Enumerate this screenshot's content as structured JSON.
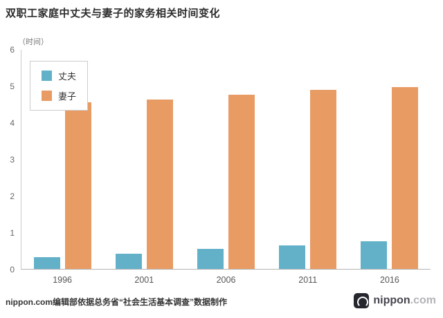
{
  "title": "双职工家庭中丈夫与妻子的家务相关时间变化",
  "unit_label": "（时间）",
  "colors": {
    "husband": "#63b1c9",
    "wife": "#e89b63"
  },
  "chart_data": {
    "type": "bar",
    "categories": [
      "1996",
      "2001",
      "2006",
      "2011",
      "2016"
    ],
    "series": [
      {
        "name": "丈夫",
        "color_key": "husband",
        "values": [
          0.33,
          0.42,
          0.55,
          0.65,
          0.75
        ]
      },
      {
        "name": "妻子",
        "color_key": "wife",
        "values": [
          4.55,
          4.62,
          4.75,
          4.88,
          4.97
        ]
      }
    ],
    "title": "双职工家庭中丈夫与妻子的家务相关时间变化",
    "xlabel": "",
    "ylabel": "（时间）",
    "ylim": [
      0,
      6
    ],
    "yticks": [
      0,
      1,
      2,
      3,
      4,
      5,
      6
    ],
    "grid": false,
    "legend_position": "top-left"
  },
  "footer": {
    "credit": "nippon.com编辑部依据总务省“社会生活基本调查”数据制作",
    "logo_text": "nippon",
    "logo_suffix": ".com"
  }
}
